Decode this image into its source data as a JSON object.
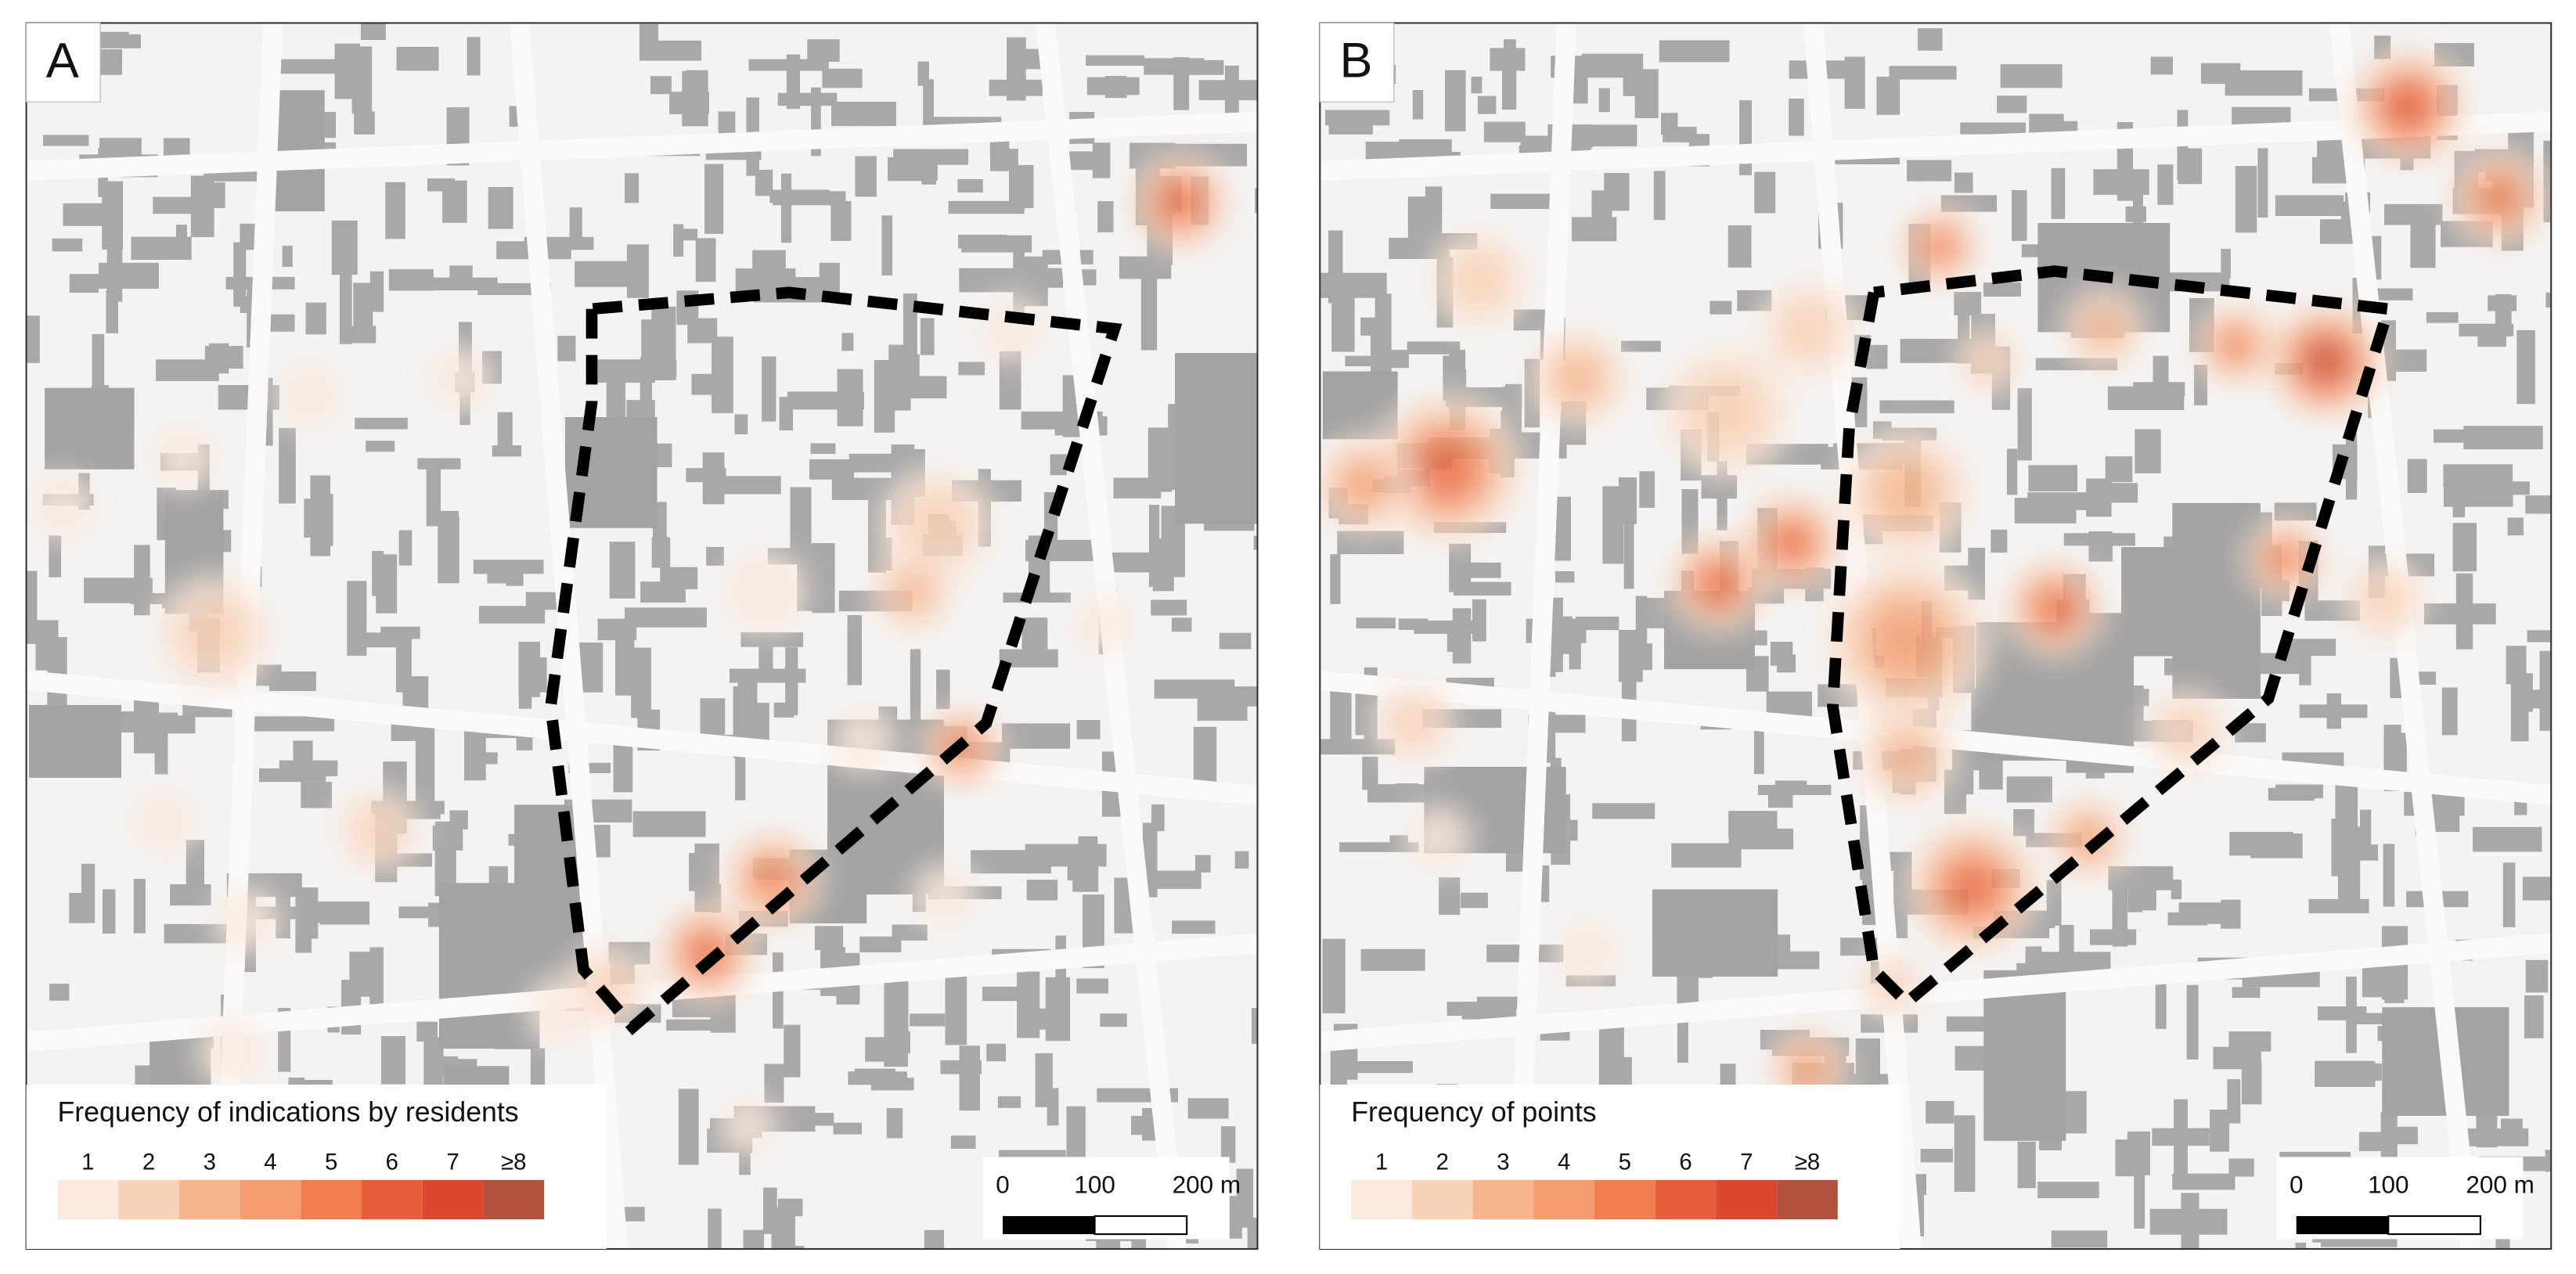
{
  "panels": [
    {
      "label": "A",
      "legend": {
        "title": "Frequency of indications by residents",
        "classes": [
          {
            "label": "1",
            "color": "#fbe9dd"
          },
          {
            "label": "2",
            "color": "#f8d1b6"
          },
          {
            "label": "3",
            "color": "#f6b58c"
          },
          {
            "label": "4",
            "color": "#f49c6e"
          },
          {
            "label": "5",
            "color": "#f17d50"
          },
          {
            "label": "6",
            "color": "#e85e3b"
          },
          {
            "label": "7",
            "color": "#d9482f"
          },
          {
            "label": "≥8",
            "color": "#b3513f"
          }
        ]
      },
      "scale_bar": {
        "labels": [
          "0",
          "100",
          "200 m"
        ]
      }
    },
    {
      "label": "B",
      "legend": {
        "title": "Frequency of points",
        "classes": [
          {
            "label": "1",
            "color": "#fbe9dd"
          },
          {
            "label": "2",
            "color": "#f8d1b6"
          },
          {
            "label": "3",
            "color": "#f6b58c"
          },
          {
            "label": "4",
            "color": "#f49c6e"
          },
          {
            "label": "5",
            "color": "#f17d50"
          },
          {
            "label": "6",
            "color": "#e85e3b"
          },
          {
            "label": "7",
            "color": "#d9482f"
          },
          {
            "label": "≥8",
            "color": "#b3513f"
          }
        ]
      },
      "scale_bar": {
        "labels": [
          "0",
          "100",
          "200 m"
        ]
      }
    }
  ]
}
